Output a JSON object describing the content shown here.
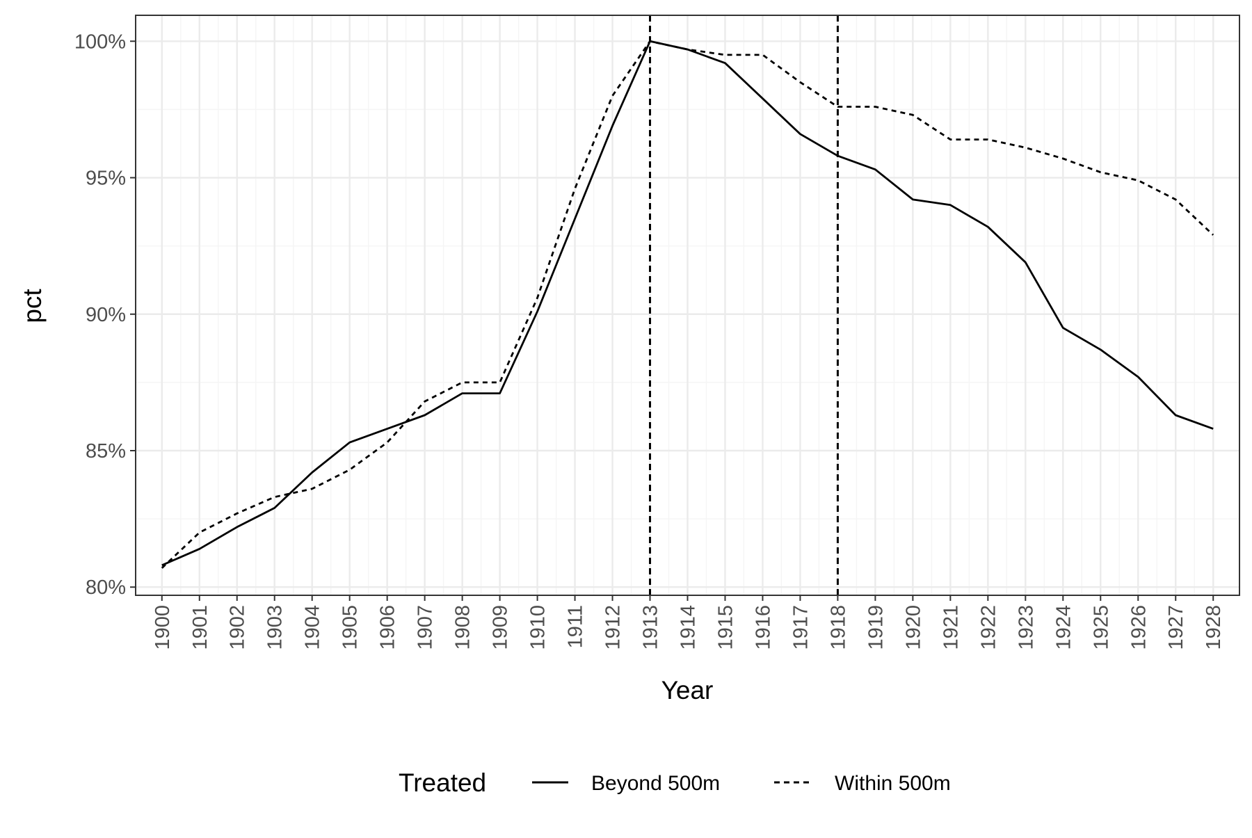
{
  "chart_data": {
    "type": "line",
    "xlabel": "Year",
    "ylabel": "pct",
    "x": [
      1900,
      1901,
      1902,
      1903,
      1904,
      1905,
      1906,
      1907,
      1908,
      1909,
      1910,
      1911,
      1912,
      1913,
      1914,
      1915,
      1916,
      1917,
      1918,
      1919,
      1920,
      1921,
      1922,
      1923,
      1924,
      1925,
      1926,
      1927,
      1928
    ],
    "x_tick_labels": [
      "1900",
      "1901",
      "1902",
      "1903",
      "1904",
      "1905",
      "1906",
      "1907",
      "1908",
      "1909",
      "1910",
      "1911",
      "1912",
      "1913",
      "1914",
      "1915",
      "1916",
      "1917",
      "1918",
      "1919",
      "1920",
      "1921",
      "1922",
      "1923",
      "1924",
      "1925",
      "1926",
      "1927",
      "1928"
    ],
    "ylim": [
      0.797,
      1.0095
    ],
    "y_ticks": [
      0.8,
      0.85,
      0.9,
      0.95,
      1.0
    ],
    "y_tick_labels": [
      "80%",
      "85%",
      "90%",
      "95%",
      "100%"
    ],
    "grid": true,
    "legend_position": "bottom",
    "legend_title": "Treated",
    "series": [
      {
        "name": "Beyond 500m",
        "line_style": "solid",
        "values": [
          0.808,
          0.814,
          0.822,
          0.829,
          0.842,
          0.853,
          0.858,
          0.863,
          0.871,
          0.871,
          0.901,
          0.935,
          0.969,
          1.0,
          0.997,
          0.992,
          0.979,
          0.966,
          0.958,
          0.953,
          0.942,
          0.94,
          0.932,
          0.919,
          0.895,
          0.887,
          0.877,
          0.863,
          0.858
        ]
      },
      {
        "name": "Within 500m",
        "line_style": "dashed",
        "values": [
          0.807,
          0.82,
          0.827,
          0.833,
          0.836,
          0.843,
          0.853,
          0.868,
          0.875,
          0.875,
          0.906,
          0.946,
          0.98,
          1.0,
          0.997,
          0.995,
          0.995,
          0.985,
          0.976,
          0.976,
          0.973,
          0.964,
          0.964,
          0.961,
          0.957,
          0.952,
          0.949,
          0.942,
          0.929
        ]
      }
    ],
    "reference_lines": [
      {
        "axis": "x",
        "value": 1913,
        "line_style": "dashed"
      },
      {
        "axis": "x",
        "value": 1918,
        "line_style": "dashed"
      }
    ],
    "colors": {
      "line": "#000000",
      "panel_border": "#333333",
      "major_grid": "#ebebeb",
      "minor_grid": "#f5f5f5",
      "tick_text": "#4d4d4d",
      "background": "#ffffff"
    }
  }
}
